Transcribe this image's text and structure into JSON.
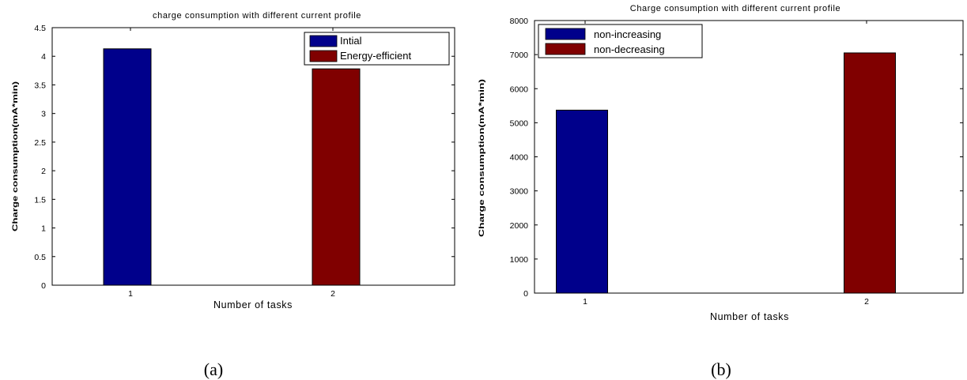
{
  "chart_data": [
    {
      "type": "bar",
      "title": "charge consumption with different current profile",
      "xlabel": "Number of tasks",
      "ylabel": "Charge consumption(mA*min)",
      "categories": [
        "1",
        "2"
      ],
      "ylim": [
        0,
        4.5
      ],
      "yticks": [
        "0",
        "0.5",
        "1",
        "1.5",
        "2",
        "2.5",
        "3",
        "3.5",
        "4",
        "4.5"
      ],
      "series": [
        {
          "name": "Intial",
          "color": "#00008b",
          "values": [
            4.13,
            null
          ]
        },
        {
          "name": "Energy-efficient",
          "color": "#800000",
          "values": [
            null,
            3.78
          ]
        }
      ],
      "legend": "top-right",
      "grid": false,
      "caption": "(a)"
    },
    {
      "type": "bar",
      "title": "Charge consumption with different current profile",
      "xlabel": "Number of tasks",
      "ylabel": "Charge consumption(mA*min)",
      "categories": [
        "1",
        "2"
      ],
      "ylim": [
        0,
        8000
      ],
      "yticks": [
        "0",
        "1000",
        "2000",
        "3000",
        "4000",
        "5000",
        "6000",
        "7000",
        "8000"
      ],
      "series": [
        {
          "name": "non-increasing",
          "color": "#00008b",
          "values": [
            5370,
            null
          ]
        },
        {
          "name": "non-decreasing",
          "color": "#800000",
          "values": [
            null,
            7050
          ]
        }
      ],
      "legend": "top-left",
      "grid": false,
      "caption": "(b)"
    }
  ]
}
